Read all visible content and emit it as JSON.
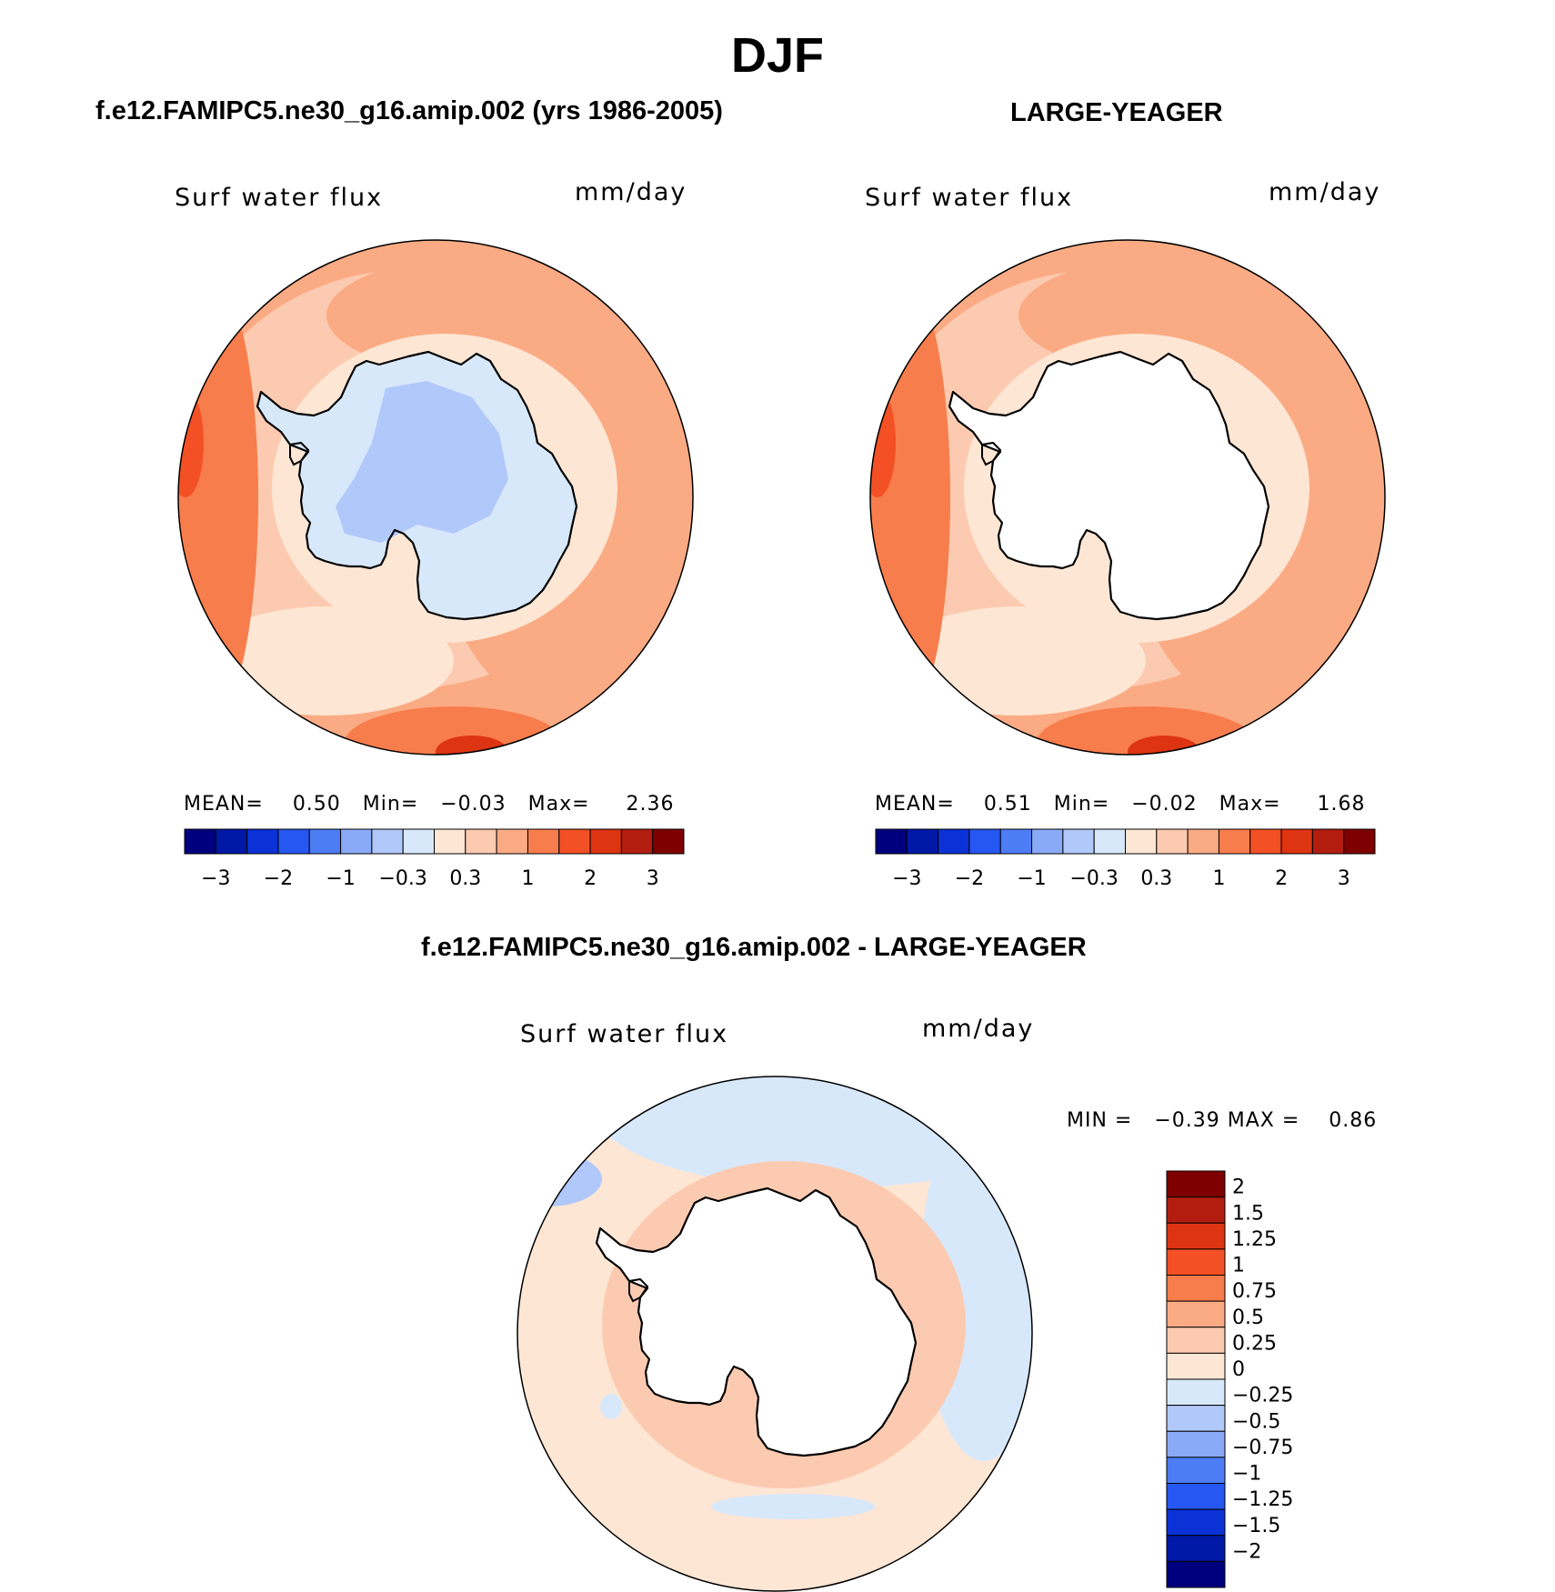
{
  "figure": {
    "title": "DJF"
  },
  "chart_data": [
    {
      "type": "heatmap",
      "projection": "south-polar-stereographic",
      "panel_title": "f.e12.FAMIPC5.ne30_g16.amip.002 (yrs 1986-2005)",
      "variable": "Surf water flux",
      "units": "mm/day",
      "stats": {
        "mean_label": "MEAN=",
        "mean": "0.50",
        "min_label": "Min=",
        "min": "−0.03",
        "max_label": "Max=",
        "max": "2.36"
      },
      "colorbar": {
        "orientation": "horizontal",
        "tick_labels": [
          "−3",
          "−2",
          "−1",
          "−0.3",
          "0.3",
          "1",
          "2",
          "3"
        ],
        "colors": [
          "#00007f",
          "#0018a6",
          "#0a32d6",
          "#2657f2",
          "#4d7df5",
          "#8aa9f7",
          "#b1c8fa",
          "#d8e8fb",
          "#fde6d4",
          "#fccab0",
          "#fbab84",
          "#f87d4c",
          "#f45025",
          "#dd3411",
          "#b21d10",
          "#7f0000"
        ]
      }
    },
    {
      "type": "heatmap",
      "projection": "south-polar-stereographic",
      "panel_title": "LARGE-YEAGER",
      "variable": "Surf water flux",
      "units": "mm/day",
      "stats": {
        "mean_label": "MEAN=",
        "mean": "0.51",
        "min_label": "Min=",
        "min": "−0.02",
        "max_label": "Max=",
        "max": "1.68"
      },
      "colorbar": {
        "orientation": "horizontal",
        "tick_labels": [
          "−3",
          "−2",
          "−1",
          "−0.3",
          "0.3",
          "1",
          "2",
          "3"
        ],
        "colors": [
          "#00007f",
          "#0018a6",
          "#0a32d6",
          "#2657f2",
          "#4d7df5",
          "#8aa9f7",
          "#b1c8fa",
          "#d8e8fb",
          "#fde6d4",
          "#fccab0",
          "#fbab84",
          "#f87d4c",
          "#f45025",
          "#dd3411",
          "#b21d10",
          "#7f0000"
        ]
      }
    },
    {
      "type": "heatmap",
      "projection": "south-polar-stereographic",
      "panel_title": "f.e12.FAMIPC5.ne30_g16.amip.002 - LARGE-YEAGER",
      "variable": "Surf water flux",
      "units": "mm/day",
      "stats": {
        "min_label": "MIN =",
        "min": "−0.39",
        "max_label": "MAX =",
        "max": "0.86"
      },
      "colorbar": {
        "orientation": "vertical",
        "tick_labels": [
          "2",
          "1.5",
          "1.25",
          "1",
          "0.75",
          "0.5",
          "0.25",
          "0",
          "−0.25",
          "−0.5",
          "−0.75",
          "−1",
          "−1.25",
          "−1.5",
          "−2"
        ],
        "colors": [
          "#7f0000",
          "#b21d10",
          "#dd3411",
          "#f45025",
          "#f87d4c",
          "#fbab84",
          "#fccab0",
          "#fde6d4",
          "#d8e8fb",
          "#b1c8fa",
          "#8aa9f7",
          "#4d7df5",
          "#2657f2",
          "#0a32d6",
          "#0018a6",
          "#00007f"
        ]
      }
    }
  ]
}
